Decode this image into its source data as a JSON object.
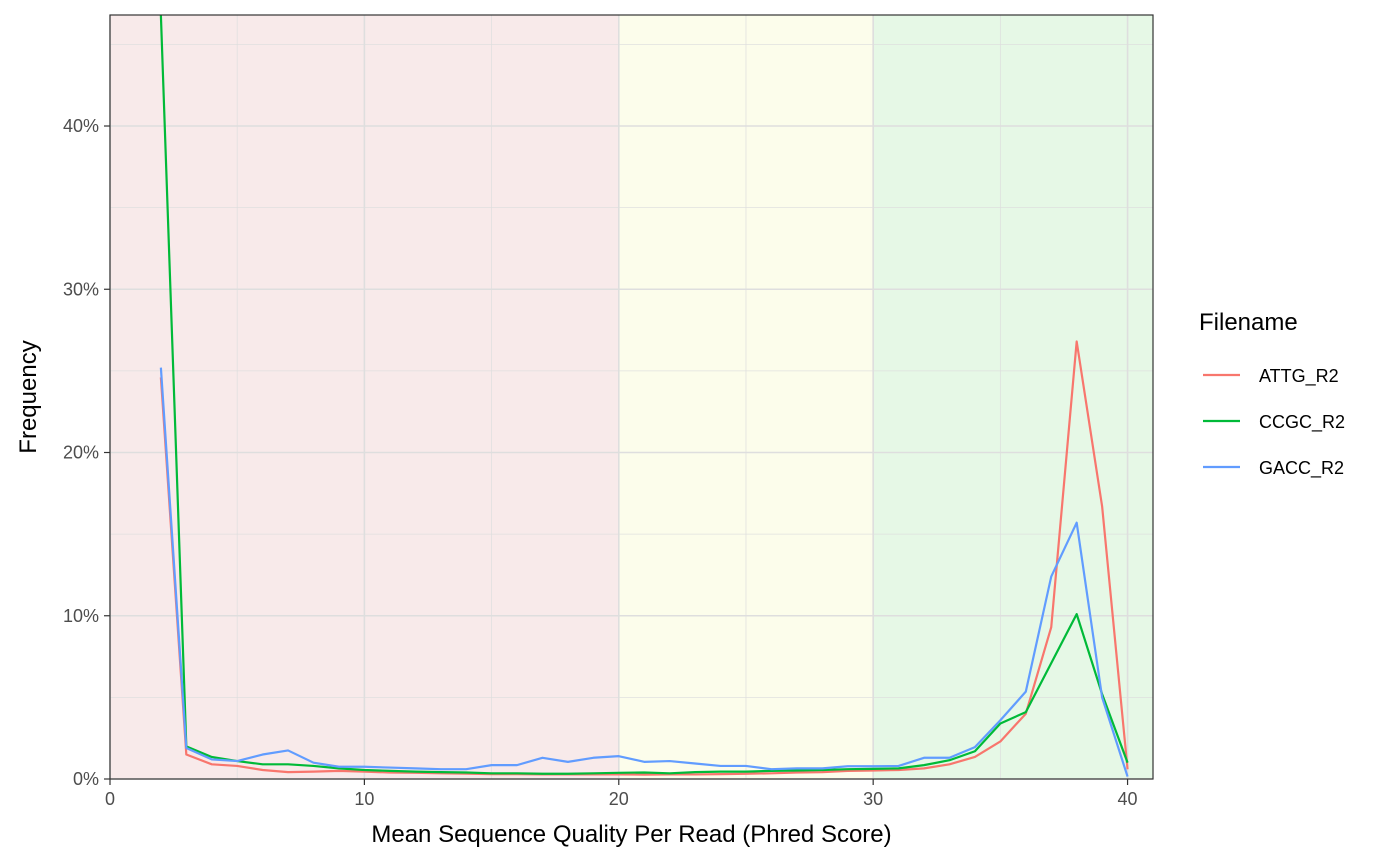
{
  "chart_data": {
    "type": "line",
    "title": "",
    "xlabel": "Mean Sequence Quality Per Read (Phred Score)",
    "ylabel": "Frequency",
    "xlim": [
      0,
      41
    ],
    "ylim": [
      0,
      46.8
    ],
    "x_ticks": [
      0,
      10,
      20,
      30,
      40
    ],
    "y_ticks": [
      0,
      10,
      20,
      30,
      40
    ],
    "y_tick_labels": [
      "0%",
      "10%",
      "20%",
      "30%",
      "40%"
    ],
    "grid": true,
    "background_bands": [
      {
        "from": 0,
        "to": 20,
        "color": "#f8eaea"
      },
      {
        "from": 20,
        "to": 30,
        "color": "#fcfdeb"
      },
      {
        "from": 30,
        "to": 41,
        "color": "#e6f8e6"
      }
    ],
    "legend": {
      "title": "Filename",
      "position": "right"
    },
    "series": [
      {
        "name": "ATTG_R2",
        "color": "#f8766d",
        "points": [
          [
            2,
            24.6
          ],
          [
            3,
            1.5
          ],
          [
            4,
            0.9
          ],
          [
            5,
            0.8
          ],
          [
            6,
            0.55
          ],
          [
            7,
            0.42
          ],
          [
            8,
            0.45
          ],
          [
            9,
            0.5
          ],
          [
            10,
            0.45
          ],
          [
            11,
            0.4
          ],
          [
            12,
            0.38
          ],
          [
            13,
            0.35
          ],
          [
            14,
            0.33
          ],
          [
            15,
            0.3
          ],
          [
            16,
            0.3
          ],
          [
            17,
            0.28
          ],
          [
            18,
            0.28
          ],
          [
            19,
            0.28
          ],
          [
            20,
            0.28
          ],
          [
            21,
            0.27
          ],
          [
            22,
            0.28
          ],
          [
            23,
            0.28
          ],
          [
            24,
            0.3
          ],
          [
            25,
            0.32
          ],
          [
            26,
            0.35
          ],
          [
            27,
            0.4
          ],
          [
            28,
            0.42
          ],
          [
            29,
            0.5
          ],
          [
            30,
            0.52
          ],
          [
            31,
            0.55
          ],
          [
            32,
            0.65
          ],
          [
            33,
            0.9
          ],
          [
            34,
            1.35
          ],
          [
            35,
            2.3
          ],
          [
            36,
            4.0
          ],
          [
            37,
            9.3
          ],
          [
            38,
            26.8
          ],
          [
            39,
            16.7
          ],
          [
            40,
            0.6
          ]
        ]
      },
      {
        "name": "CCGC_R2",
        "color": "#00ba38",
        "points": [
          [
            2,
            47.5
          ],
          [
            3,
            2.0
          ],
          [
            4,
            1.35
          ],
          [
            5,
            1.1
          ],
          [
            6,
            0.9
          ],
          [
            7,
            0.9
          ],
          [
            8,
            0.8
          ],
          [
            9,
            0.65
          ],
          [
            10,
            0.55
          ],
          [
            11,
            0.5
          ],
          [
            12,
            0.45
          ],
          [
            13,
            0.42
          ],
          [
            14,
            0.4
          ],
          [
            15,
            0.35
          ],
          [
            16,
            0.35
          ],
          [
            17,
            0.32
          ],
          [
            18,
            0.32
          ],
          [
            19,
            0.35
          ],
          [
            20,
            0.38
          ],
          [
            21,
            0.4
          ],
          [
            22,
            0.35
          ],
          [
            23,
            0.42
          ],
          [
            24,
            0.45
          ],
          [
            25,
            0.45
          ],
          [
            26,
            0.5
          ],
          [
            27,
            0.52
          ],
          [
            28,
            0.55
          ],
          [
            29,
            0.6
          ],
          [
            30,
            0.62
          ],
          [
            31,
            0.65
          ],
          [
            32,
            0.85
          ],
          [
            33,
            1.15
          ],
          [
            34,
            1.7
          ],
          [
            35,
            3.4
          ],
          [
            36,
            4.1
          ],
          [
            37,
            7.1
          ],
          [
            38,
            10.1
          ],
          [
            39,
            5.2
          ],
          [
            40,
            1.0
          ]
        ]
      },
      {
        "name": "GACC_R2",
        "color": "#619cff",
        "points": [
          [
            2,
            25.2
          ],
          [
            3,
            1.9
          ],
          [
            4,
            1.2
          ],
          [
            5,
            1.1
          ],
          [
            6,
            1.5
          ],
          [
            7,
            1.75
          ],
          [
            8,
            1.0
          ],
          [
            9,
            0.75
          ],
          [
            10,
            0.75
          ],
          [
            11,
            0.7
          ],
          [
            12,
            0.65
          ],
          [
            13,
            0.6
          ],
          [
            14,
            0.6
          ],
          [
            15,
            0.85
          ],
          [
            16,
            0.85
          ],
          [
            17,
            1.3
          ],
          [
            18,
            1.05
          ],
          [
            19,
            1.3
          ],
          [
            20,
            1.4
          ],
          [
            21,
            1.05
          ],
          [
            22,
            1.1
          ],
          [
            23,
            0.95
          ],
          [
            24,
            0.8
          ],
          [
            25,
            0.8
          ],
          [
            26,
            0.6
          ],
          [
            27,
            0.65
          ],
          [
            28,
            0.65
          ],
          [
            29,
            0.78
          ],
          [
            30,
            0.78
          ],
          [
            31,
            0.8
          ],
          [
            32,
            1.3
          ],
          [
            33,
            1.3
          ],
          [
            34,
            1.95
          ],
          [
            35,
            3.6
          ],
          [
            36,
            5.35
          ],
          [
            37,
            12.4
          ],
          [
            38,
            15.7
          ],
          [
            39,
            5.0
          ],
          [
            40,
            0.15
          ]
        ]
      }
    ]
  }
}
